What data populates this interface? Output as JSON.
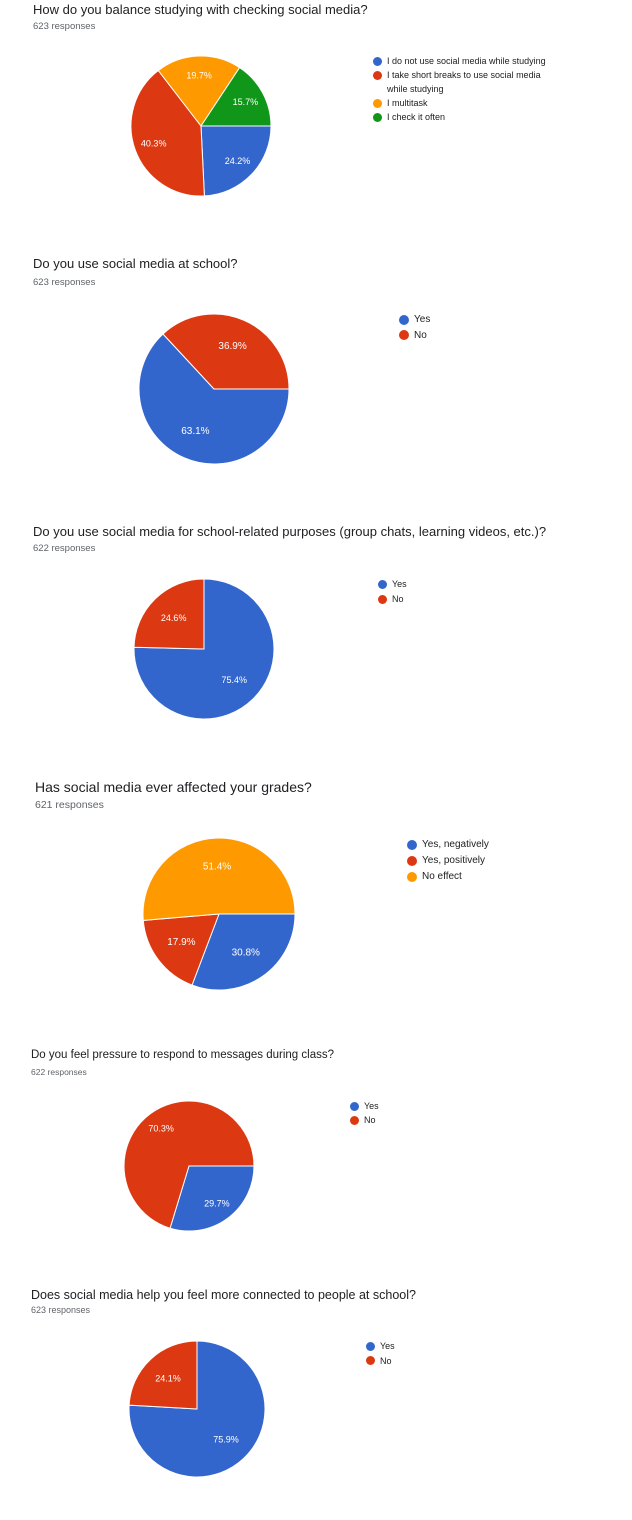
{
  "colors": {
    "blue": "#3366cc",
    "red": "#dc3912",
    "orange": "#ff9900",
    "green": "#109618"
  },
  "chart_data": [
    {
      "type": "pie",
      "title": "How do you balance studying with checking social media?",
      "responses": "623 responses",
      "slices": [
        {
          "label": "I do not use social media while studying",
          "value": 24.2,
          "pct_label": "24.2%",
          "color": "#3366cc"
        },
        {
          "label": "I take short breaks to use social media while studying",
          "value": 40.3,
          "pct_label": "40.3%",
          "color": "#dc3912"
        },
        {
          "label": "I multitask",
          "value": 19.7,
          "pct_label": "19.7%",
          "color": "#ff9900"
        },
        {
          "label": "I check it often",
          "value": 15.7,
          "pct_label": "15.7%",
          "color": "#109618"
        }
      ],
      "legend_position": "right"
    },
    {
      "type": "pie",
      "title": "Do you use social media at school?",
      "responses": "623 responses",
      "slices": [
        {
          "label": "Yes",
          "value": 63.1,
          "pct_label": "63.1%",
          "color": "#3366cc"
        },
        {
          "label": "No",
          "value": 36.9,
          "pct_label": "36.9%",
          "color": "#dc3912"
        }
      ],
      "legend_position": "right"
    },
    {
      "type": "pie",
      "title": "Do you use social media for school-related purposes (group chats, learning videos, etc.)?",
      "responses": "622 responses",
      "slices": [
        {
          "label": "Yes",
          "value": 75.4,
          "pct_label": "75.4%",
          "color": "#3366cc"
        },
        {
          "label": "No",
          "value": 24.6,
          "pct_label": "24.6%",
          "color": "#dc3912"
        }
      ],
      "legend_position": "right"
    },
    {
      "type": "pie",
      "title": "Has social media ever affected your grades?",
      "responses": "621 responses",
      "slices": [
        {
          "label": "Yes, negatively",
          "value": 30.8,
          "pct_label": "30.8%",
          "color": "#3366cc"
        },
        {
          "label": "Yes, positively",
          "value": 17.9,
          "pct_label": "17.9%",
          "color": "#dc3912"
        },
        {
          "label": "No effect",
          "value": 51.4,
          "pct_label": "51.4%",
          "color": "#ff9900"
        }
      ],
      "legend_position": "right"
    },
    {
      "type": "pie",
      "title": "Do you feel pressure to respond to messages during class?",
      "responses": "622 responses",
      "slices": [
        {
          "label": "Yes",
          "value": 29.7,
          "pct_label": "29.7%",
          "color": "#3366cc"
        },
        {
          "label": "No",
          "value": 70.3,
          "pct_label": "70.3%",
          "color": "#dc3912"
        }
      ],
      "legend_position": "right"
    },
    {
      "type": "pie",
      "title": "Does social media help you feel more connected to people at school?",
      "responses": "623 responses",
      "slices": [
        {
          "label": "Yes",
          "value": 75.9,
          "pct_label": "75.9%",
          "color": "#3366cc"
        },
        {
          "label": "No",
          "value": 24.1,
          "pct_label": "24.1%",
          "color": "#dc3912"
        }
      ],
      "legend_position": "right"
    }
  ]
}
